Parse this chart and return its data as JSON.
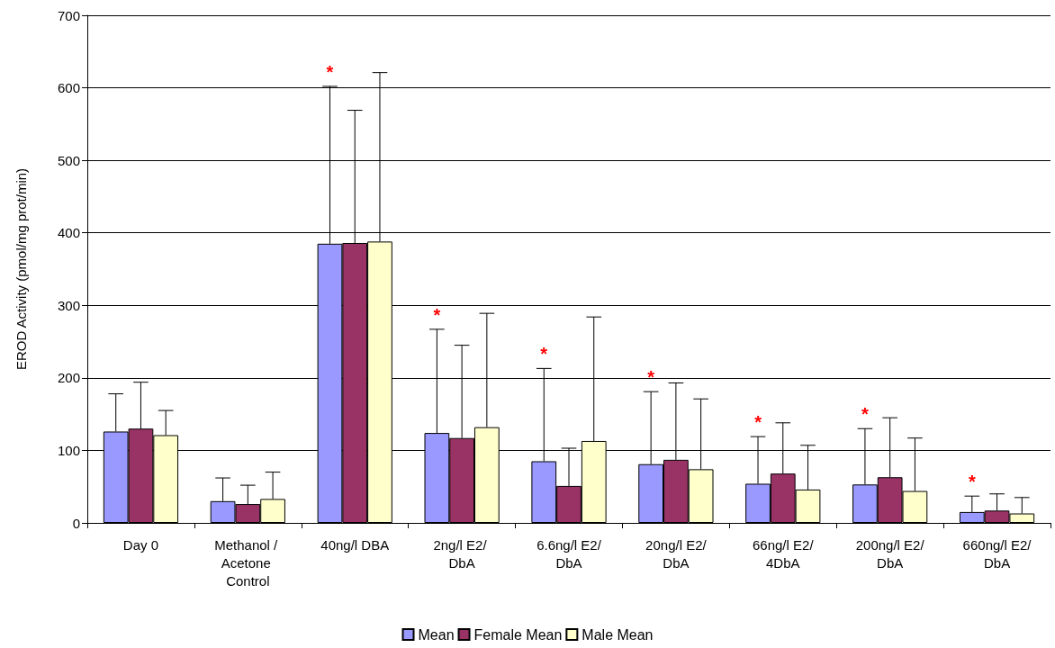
{
  "chart_data": {
    "type": "bar",
    "ylabel": "EROD Activity (pmol/mg prot/min)",
    "categories": [
      "Day 0",
      "Methanol / Acetone Control",
      "40ng/l DBA",
      "2ng/l E2/ DbA",
      "6.6ng/l E2/DbA",
      "20ng/l E2/DbA",
      "66ng/l E2/4DbA",
      "200ng/l E2/DbA",
      "660ng/l E2/DbA"
    ],
    "series": [
      {
        "name": "Mean",
        "color": "#9999ff",
        "values": [
          126,
          30,
          385,
          124,
          85,
          81,
          54,
          53,
          15
        ],
        "errors": [
          [
            126,
            178
          ],
          [
            30,
            62
          ],
          [
            385,
            602
          ],
          [
            124,
            267
          ],
          [
            85,
            213
          ],
          [
            81,
            181
          ],
          [
            54,
            119
          ],
          [
            53,
            130
          ],
          [
            15,
            37
          ]
        ]
      },
      {
        "name": "Female Mean",
        "color": "#993366",
        "values": [
          130,
          26,
          386,
          117,
          51,
          87,
          68,
          63,
          17
        ],
        "errors": [
          [
            130,
            194
          ],
          [
            26,
            52
          ],
          [
            386,
            569
          ],
          [
            117,
            245
          ],
          [
            51,
            103
          ],
          [
            87,
            193
          ],
          [
            68,
            138
          ],
          [
            63,
            145
          ],
          [
            17,
            40
          ]
        ]
      },
      {
        "name": "Male Mean",
        "color": "#ffffcc",
        "values": [
          121,
          33,
          388,
          132,
          113,
          74,
          46,
          44,
          13
        ],
        "errors": [
          [
            121,
            155
          ],
          [
            33,
            70
          ],
          [
            388,
            621
          ],
          [
            132,
            289
          ],
          [
            113,
            284
          ],
          [
            74,
            171
          ],
          [
            46,
            107
          ],
          [
            44,
            117
          ],
          [
            13,
            35
          ]
        ]
      }
    ],
    "annotations": [
      "*",
      "*",
      "*",
      "*",
      "*",
      "*",
      "*"
    ],
    "ylim": [
      0,
      700
    ],
    "yticks": [
      0,
      100,
      200,
      300,
      400,
      500,
      600,
      700
    ],
    "grid": "y",
    "legend": "bottom"
  }
}
